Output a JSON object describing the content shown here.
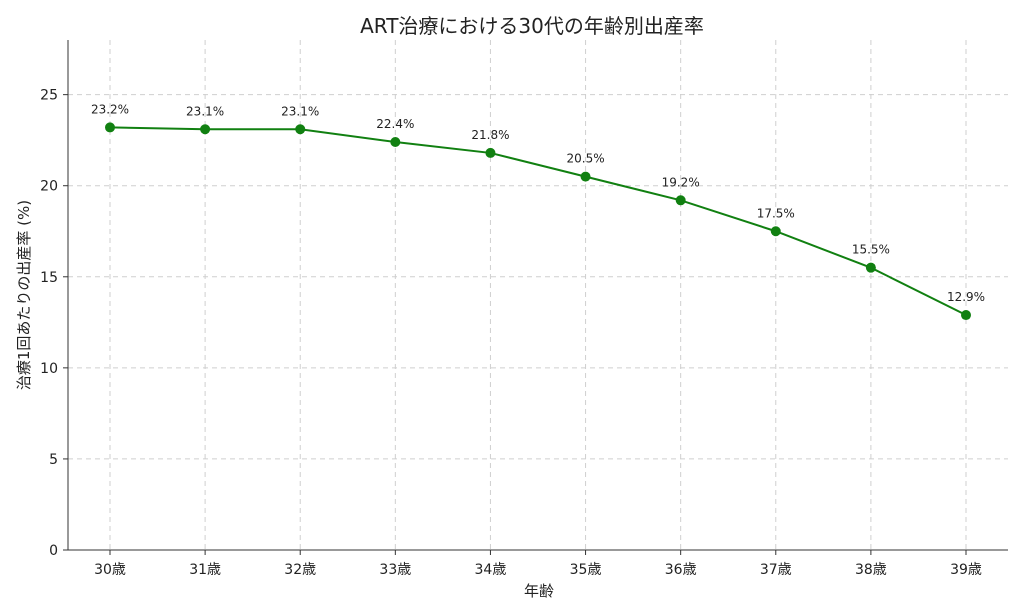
{
  "chart_data": {
    "type": "line",
    "title": "ART治療における30代の年齢別出産率",
    "xlabel": "年齢",
    "ylabel": "治療1回あたりの出産率 (%)",
    "categories": [
      "30歳",
      "31歳",
      "32歳",
      "33歳",
      "34歳",
      "35歳",
      "36歳",
      "37歳",
      "38歳",
      "39歳"
    ],
    "series": [
      {
        "values": [
          23.2,
          23.1,
          23.1,
          22.4,
          21.8,
          20.5,
          19.2,
          17.5,
          15.5,
          12.9
        ],
        "labels": [
          "23.2%",
          "23.1%",
          "23.1%",
          "22.4%",
          "21.8%",
          "20.5%",
          "19.2%",
          "17.5%",
          "15.5%",
          "12.9%"
        ],
        "color": "#118011"
      }
    ],
    "ylim": [
      0,
      28
    ],
    "yticks": [
      0,
      5,
      10,
      15,
      20,
      25
    ],
    "grid": true,
    "legend": "none"
  }
}
